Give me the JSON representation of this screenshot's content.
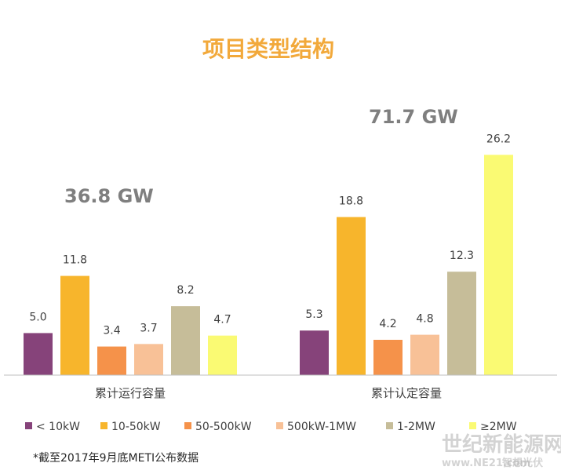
{
  "chart_data": {
    "type": "bar",
    "title": "项目类型结构",
    "categories": [
      "累计运行容量",
      "累计认定容量"
    ],
    "totals": [
      "36.8 GW",
      "71.7 GW"
    ],
    "ylim": [
      0,
      28
    ],
    "series": [
      {
        "name": "< 10kW",
        "color": "#86437a",
        "values": [
          5.0,
          5.3
        ],
        "labels": [
          "5.0",
          "5.3"
        ]
      },
      {
        "name": "10-50kW",
        "color": "#f7b52c",
        "values": [
          11.8,
          18.8
        ],
        "labels": [
          "11.8",
          "18.8"
        ]
      },
      {
        "name": "50-500kW",
        "color": "#f5924a",
        "values": [
          3.4,
          4.2
        ],
        "labels": [
          "3.4",
          "4.2"
        ]
      },
      {
        "name": "500kW-1MW",
        "color": "#f8c197",
        "values": [
          3.7,
          4.8
        ],
        "labels": [
          "3.7",
          "4.8"
        ]
      },
      {
        "name": "1-2MW",
        "color": "#c6bd99",
        "values": [
          8.2,
          12.3
        ],
        "labels": [
          "8.2",
          "12.3"
        ]
      },
      {
        "name": "≥2MW",
        "color": "#fafa73",
        "values": [
          4.7,
          26.2
        ],
        "labels": [
          "4.7",
          "26.2"
        ]
      }
    ],
    "legend_position": "bottom",
    "grid": false,
    "title_color": "#f2a93b"
  },
  "footnote": "*截至2017年9月底METI公布数据",
  "watermark": {
    "line1": "世纪新能源网",
    "line2": "www.NE21.com",
    "line3": "智想光伏"
  }
}
